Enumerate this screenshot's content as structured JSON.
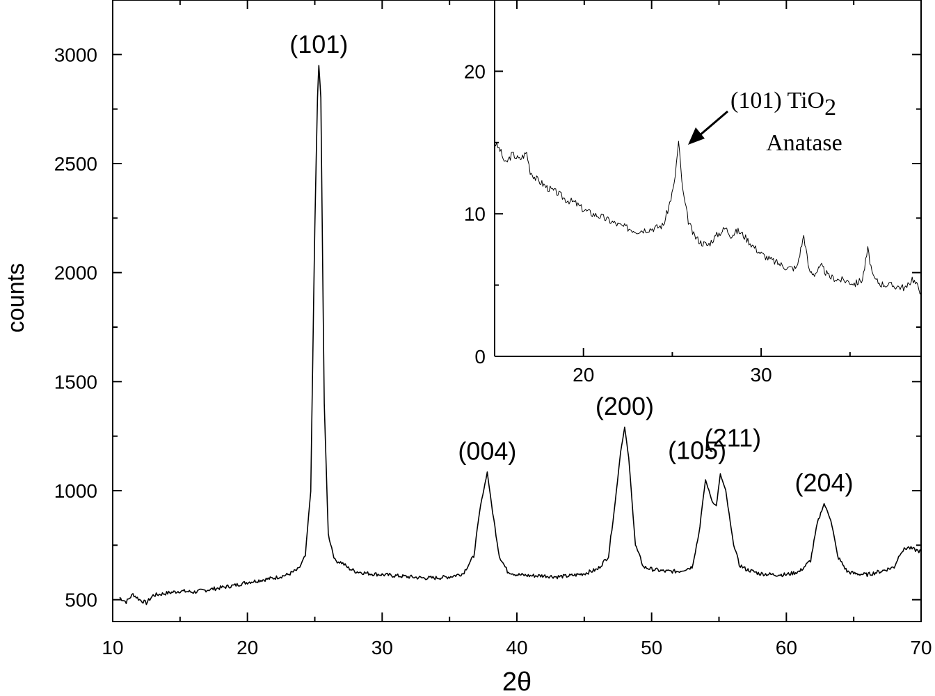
{
  "chart_data": [
    {
      "id": "main",
      "type": "line",
      "xlabel": "2θ",
      "ylabel": "counts",
      "xlim": [
        10,
        70
      ],
      "ylim": [
        400,
        3250
      ],
      "xticks": [
        10,
        20,
        30,
        40,
        50,
        60,
        70
      ],
      "yticks": [
        500,
        1000,
        1500,
        2000,
        2500,
        3000
      ],
      "grid": false,
      "series": [
        {
          "x": [
            10.5,
            11.0,
            11.5,
            12.0,
            12.5,
            13.0,
            14.0,
            15.0,
            16.0,
            17.0,
            18.0,
            19.0,
            20.0,
            21.0,
            22.0,
            23.0,
            23.8,
            24.3,
            24.7,
            25.0,
            25.2,
            25.3,
            25.45,
            25.7,
            26.0,
            26.5,
            27.0,
            27.5,
            28.0,
            29.0,
            30.0,
            31.0,
            32.0,
            33.0,
            34.0,
            35.0,
            36.0,
            36.8,
            37.3,
            37.8,
            38.2,
            38.7,
            39.3,
            40.0,
            41.0,
            42.0,
            43.0,
            44.0,
            45.0,
            46.0,
            46.8,
            47.3,
            47.7,
            48.0,
            48.3,
            48.8,
            49.4,
            50.0,
            51.0,
            52.0,
            53.0,
            53.5,
            54.0,
            54.5,
            54.8,
            55.1,
            55.5,
            56.0,
            56.5,
            57.0,
            58.0,
            59.0,
            60.0,
            61.0,
            61.8,
            62.3,
            62.8,
            63.3,
            63.8,
            64.5,
            65.0,
            66.0,
            67.0,
            68.0,
            68.5,
            69.0,
            69.5,
            70.0
          ],
          "y": [
            510,
            490,
            525,
            500,
            485,
            520,
            530,
            540,
            535,
            545,
            555,
            565,
            580,
            590,
            600,
            615,
            640,
            700,
            1000,
            2200,
            2800,
            2950,
            2800,
            1400,
            800,
            680,
            670,
            645,
            630,
            620,
            615,
            610,
            605,
            600,
            600,
            605,
            620,
            700,
            930,
            1085,
            900,
            700,
            630,
            615,
            610,
            610,
            605,
            610,
            620,
            640,
            700,
            950,
            1180,
            1290,
            1150,
            750,
            650,
            640,
            630,
            630,
            650,
            800,
            1050,
            950,
            930,
            1075,
            1000,
            780,
            660,
            640,
            620,
            615,
            615,
            630,
            680,
            850,
            940,
            870,
            700,
            630,
            620,
            615,
            630,
            650,
            720,
            740,
            730,
            720
          ]
        }
      ],
      "annotations": [
        "(101)",
        "(004)",
        "(200)",
        "(105)",
        "(211)",
        "(204)"
      ]
    },
    {
      "id": "inset",
      "type": "line",
      "xlim": [
        15,
        39
      ],
      "ylim": [
        0,
        25
      ],
      "xticks": [
        20,
        30
      ],
      "yticks": [
        0,
        10,
        20
      ],
      "grid": false,
      "series": [
        {
          "x": [
            15.0,
            15.3,
            15.6,
            16.0,
            16.4,
            16.8,
            17.0,
            17.3,
            17.6,
            18.0,
            18.5,
            19.0,
            19.5,
            20.0,
            20.5,
            21.0,
            21.5,
            22.0,
            22.5,
            23.0,
            23.5,
            24.0,
            24.5,
            24.8,
            25.1,
            25.35,
            25.6,
            25.9,
            26.2,
            26.6,
            27.0,
            27.5,
            28.0,
            28.3,
            28.7,
            29.0,
            29.5,
            30.0,
            30.5,
            31.0,
            31.5,
            32.0,
            32.4,
            32.7,
            33.0,
            33.4,
            33.8,
            34.3,
            34.8,
            35.3,
            35.7,
            36.0,
            36.3,
            36.7,
            37.2,
            37.7,
            38.2,
            38.5,
            39.0
          ],
          "y": [
            15.0,
            14.5,
            13.5,
            14.2,
            13.8,
            14.3,
            13.0,
            12.5,
            12.2,
            11.8,
            11.5,
            11.0,
            10.8,
            10.3,
            10.0,
            9.8,
            9.5,
            9.2,
            9.0,
            8.8,
            8.9,
            9.0,
            9.2,
            10.5,
            12.0,
            15.0,
            11.5,
            9.5,
            8.5,
            8.0,
            7.8,
            8.5,
            9.0,
            8.5,
            8.8,
            8.5,
            7.8,
            7.2,
            6.8,
            6.5,
            6.2,
            6.2,
            8.5,
            6.0,
            5.8,
            6.3,
            5.6,
            5.4,
            5.3,
            5.1,
            5.4,
            7.5,
            5.5,
            5.1,
            5.0,
            4.9,
            4.8,
            5.5,
            4.5
          ]
        }
      ],
      "annotation": {
        "text": "(101) TiO",
        "subscript": "2",
        "line2": "Anatase"
      }
    }
  ]
}
